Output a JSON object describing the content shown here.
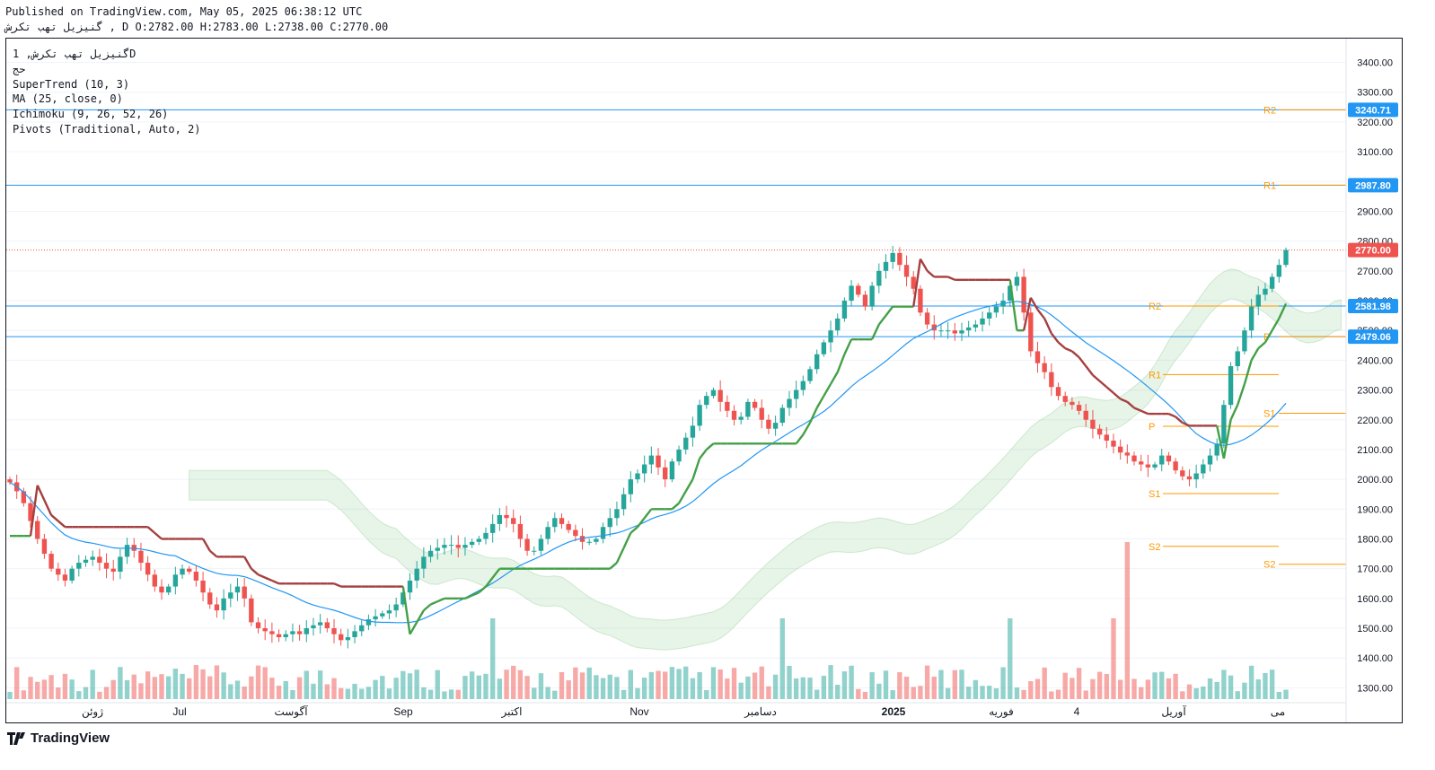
{
  "header": {
    "published": "Published on TradingView.com, May 05, 2025 06:38:12 UTC",
    "ohlc": "گنیزیل تهب تکرش , D O:2782.00 H:2783.00 L:2738.00 C:2770.00"
  },
  "legend": {
    "line1": "گنیزیل تهب تکرش, 1D",
    "line2": "حج",
    "supertrend": "SuperTrend (10, 3)",
    "ma": "MA (25, close, 0)",
    "ichimoku": "Ichimoku (9, 26, 52, 26)",
    "pivots": "Pivots (Traditional, Auto, 2)"
  },
  "brand": {
    "name": "TradingView",
    "icon": "tradingview-logo-icon"
  },
  "colors": {
    "up": "#26a69a",
    "down": "#ef5350",
    "supertrend_up": "#43a047",
    "supertrend_down": "#a53f3f",
    "ma": "#2196f3",
    "hline": "#2196f3",
    "pivot": "#ff9800"
  },
  "chart_data": {
    "type": "candlestick",
    "y_range": [
      1250,
      3480
    ],
    "y_ticks": [
      "3400.00",
      "3300.00",
      "3200.00",
      "3100.00",
      "3000.00",
      "2900.00",
      "2800.00",
      "2700.00",
      "2600.00",
      "2500.00",
      "2400.00",
      "2300.00",
      "2200.00",
      "2100.00",
      "2000.00",
      "1900.00",
      "1800.00",
      "1700.00",
      "1600.00",
      "1500.00",
      "1400.00",
      "1300.00"
    ],
    "x_labels": [
      "ژوئن",
      "Jul",
      "آگوست",
      "Sep",
      "اکتبر",
      "Nov",
      "دسامبر",
      "2025",
      "فوریه",
      "4",
      "آوریل",
      "می"
    ],
    "price_tags": [
      {
        "label": "3240.71",
        "value": 3240.71,
        "color": "#2196f3"
      },
      {
        "label": "2987.80",
        "value": 2987.8,
        "color": "#2196f3"
      },
      {
        "label": "2770.00",
        "value": 2770.0,
        "color": "#ef5350"
      },
      {
        "label": "2581.98",
        "value": 2581.98,
        "color": "#2196f3"
      },
      {
        "label": "2479.06",
        "value": 2479.06,
        "color": "#2196f3"
      }
    ],
    "hlines": [
      3240.71,
      2987.8,
      2581.98,
      2479.06
    ],
    "last_price": 2770.0,
    "pivots_1": [
      {
        "label": "R2",
        "value": 2581.98
      },
      {
        "label": "R1",
        "value": 2352
      },
      {
        "label": "P",
        "value": 2178
      },
      {
        "label": "S1",
        "value": 1952
      },
      {
        "label": "S2",
        "value": 1775
      }
    ],
    "pivots_2": [
      {
        "label": "R2",
        "value": 3240.71
      },
      {
        "label": "R1",
        "value": 2987.8
      },
      {
        "label": "P",
        "value": 2479.06
      },
      {
        "label": "S1",
        "value": 2222
      },
      {
        "label": "S2",
        "value": 1715
      }
    ],
    "close_series": [
      1990,
      1960,
      1920,
      1860,
      1800,
      1750,
      1700,
      1680,
      1660,
      1700,
      1720,
      1730,
      1740,
      1720,
      1700,
      1690,
      1740,
      1780,
      1760,
      1720,
      1680,
      1640,
      1620,
      1640,
      1680,
      1700,
      1690,
      1660,
      1620,
      1580,
      1560,
      1600,
      1620,
      1640,
      1600,
      1520,
      1500,
      1490,
      1480,
      1470,
      1480,
      1490,
      1480,
      1500,
      1510,
      1520,
      1500,
      1480,
      1460,
      1470,
      1490,
      1510,
      1530,
      1540,
      1550,
      1560,
      1580,
      1620,
      1660,
      1700,
      1740,
      1760,
      1770,
      1780,
      1780,
      1770,
      1780,
      1790,
      1800,
      1820,
      1850,
      1880,
      1870,
      1850,
      1800,
      1760,
      1760,
      1800,
      1840,
      1870,
      1850,
      1830,
      1810,
      1790,
      1790,
      1800,
      1840,
      1870,
      1900,
      1950,
      2000,
      2020,
      2050,
      2080,
      2040,
      2000,
      2060,
      2100,
      2140,
      2180,
      2250,
      2280,
      2300,
      2260,
      2230,
      2200,
      2210,
      2260,
      2240,
      2200,
      2170,
      2190,
      2240,
      2270,
      2300,
      2330,
      2370,
      2420,
      2460,
      2500,
      2540,
      2600,
      2650,
      2620,
      2580,
      2650,
      2700,
      2730,
      2760,
      2720,
      2680,
      2640,
      2560,
      2520,
      2500,
      2500,
      2500,
      2490,
      2500,
      2510,
      2520,
      2540,
      2560,
      2580,
      2600,
      2650,
      2680,
      2560,
      2430,
      2390,
      2360,
      2310,
      2280,
      2260,
      2250,
      2230,
      2200,
      2170,
      2150,
      2130,
      2110,
      2090,
      2080,
      2060,
      2050,
      2040,
      2050,
      2080,
      2060,
      2030,
      2010,
      2000,
      2020,
      2050,
      2080,
      2120,
      2250,
      2380,
      2430,
      2500,
      2580,
      2620,
      2640,
      2680,
      2720,
      2770
    ]
  }
}
